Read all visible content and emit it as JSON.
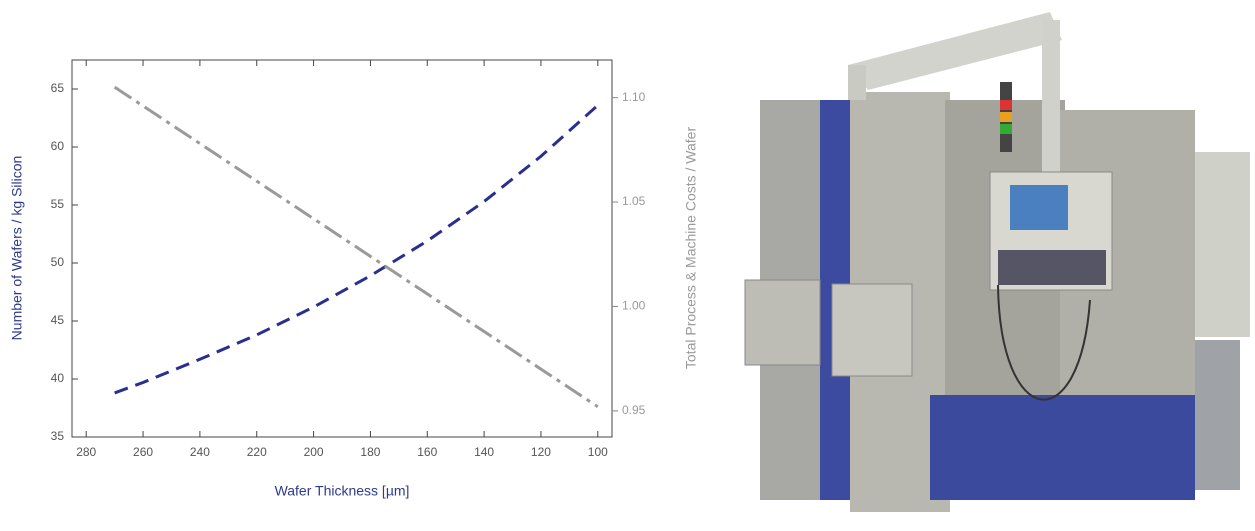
{
  "chart_data": {
    "type": "line",
    "xlabel": "Wafer Thickness [µm]",
    "ylabel": "Number of Wafers / kg Silicon",
    "y2label": "Total Process & Machine Costs / Wafer",
    "x": [
      270,
      260,
      240,
      220,
      200,
      180,
      160,
      140,
      120,
      100
    ],
    "series": [
      {
        "color": "#2a2f8e",
        "values": [
          38.8,
          39.7,
          41.7,
          43.8,
          46.2,
          48.9,
          51.9,
          55.3,
          59.2,
          63.6
        ]
      },
      {
        "color": "#9a9a9a",
        "axis": "y2",
        "values": [
          1.105,
          1.096,
          1.078,
          1.06,
          1.042,
          1.024,
          1.006,
          0.988,
          0.97,
          0.952
        ]
      }
    ],
    "xlim": [
      285,
      95
    ],
    "xticks": [
      280,
      260,
      240,
      220,
      200,
      180,
      160,
      140,
      120,
      100
    ],
    "ylim": [
      35,
      67.5
    ],
    "yticks": [
      35,
      40,
      45,
      50,
      55,
      60,
      65
    ],
    "y2lim": [
      0.9375,
      1.118
    ],
    "y2ticks": [
      0.95,
      {
        "value": 1,
        "label": "1.00"
      },
      1.05,
      {
        "value": 1.1,
        "label": "1.10"
      }
    ]
  }
}
